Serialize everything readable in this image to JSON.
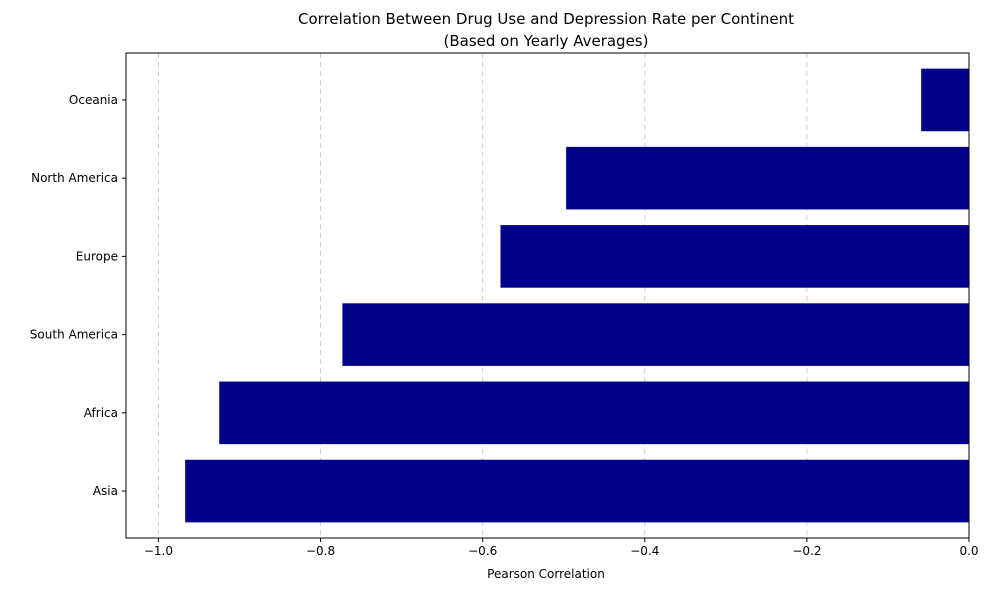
{
  "chart_data": {
    "type": "bar",
    "orientation": "horizontal",
    "title": "Correlation Between Drug Use and Depression Rate per Continent",
    "subtitle": "(Based on Yearly Averages)",
    "xlabel": "Pearson Correlation",
    "ylabel": "",
    "categories": [
      "Asia",
      "Africa",
      "South America",
      "Europe",
      "North America",
      "Oceania"
    ],
    "values": [
      -0.967,
      -0.925,
      -0.773,
      -0.578,
      -0.497,
      -0.059
    ],
    "xlim": [
      -1.04,
      0.0
    ],
    "xticks": [
      -1.0,
      -0.8,
      -0.6,
      -0.4,
      -0.2,
      0.0
    ],
    "xtick_labels": [
      "−1.0",
      "−0.8",
      "−0.6",
      "−0.4",
      "−0.2",
      "0.0"
    ],
    "grid": "x-dashed",
    "legend": "none",
    "bar_color": "#00008b",
    "reference_line_at": 0
  }
}
